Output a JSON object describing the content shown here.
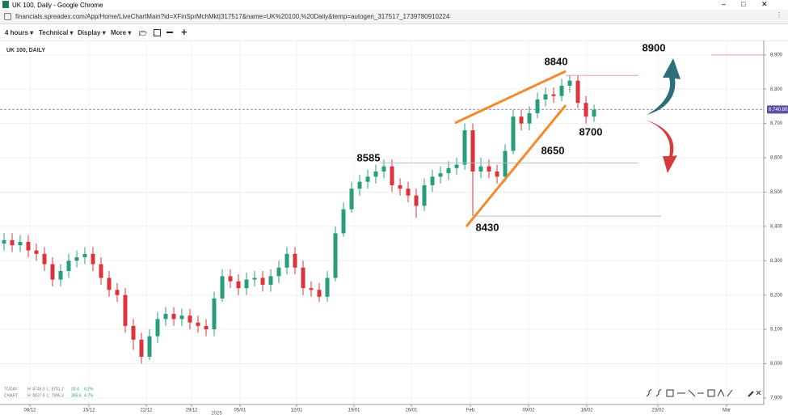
{
  "window_title": "UK 100, Daily - Google Chrome",
  "url": "financials.spreadex.com/App/Home/LiveChartMain?id=XFinSprMchMkt|317517&name=UK%20100,%20Daily&temp=autogen_317517_1739780910224",
  "toolbar": [
    "4 hours",
    "Technical",
    "Display",
    "More"
  ],
  "info": {
    "today": [
      "TODAY:",
      "H: 8746.0",
      "L: 8701.2",
      "20.4",
      "0.2%"
    ],
    "chart": [
      "CHART:",
      "H: 8837.6",
      "L: 7995.3",
      "395.6",
      "4.7%"
    ]
  },
  "chart_data": {
    "type": "candlestick",
    "title": "UK 100, DAILY",
    "x": [
      0,
      1,
      2,
      3,
      4,
      5,
      6,
      7,
      8,
      9,
      10,
      11,
      12,
      13,
      14,
      15,
      16,
      17,
      18,
      19,
      20,
      21,
      22,
      23,
      24,
      25,
      26,
      27,
      28,
      29,
      30,
      31,
      32,
      33,
      34,
      35,
      36,
      37,
      38,
      39,
      40,
      41,
      42,
      43,
      44,
      45,
      46,
      47,
      48,
      49,
      50,
      51,
      52,
      53,
      54,
      55,
      56,
      57,
      58,
      59,
      60,
      61,
      62,
      63,
      64,
      65,
      66,
      67,
      68,
      69,
      70,
      71,
      72,
      73
    ],
    "open": [
      8350,
      8360,
      8345,
      8355,
      8330,
      8320,
      8290,
      8245,
      8270,
      8300,
      8310,
      8320,
      8290,
      8250,
      8215,
      8200,
      8110,
      8070,
      8020,
      8080,
      8130,
      8145,
      8130,
      8140,
      8120,
      8110,
      8100,
      8190,
      8255,
      8240,
      8220,
      8245,
      8250,
      8230,
      8255,
      8280,
      8320,
      8280,
      8220,
      8215,
      8195,
      8250,
      8380,
      8450,
      8510,
      8530,
      8545,
      8560,
      8575,
      8520,
      8510,
      8490,
      8460,
      8520,
      8545,
      8555,
      8570,
      8580,
      8680,
      8560,
      8575,
      8560,
      8545,
      8620,
      8720,
      8700,
      8730,
      8770,
      8785,
      8780,
      8810,
      8825,
      8760,
      8720
    ],
    "high": [
      8380,
      8380,
      8375,
      8375,
      8350,
      8340,
      8310,
      8290,
      8320,
      8330,
      8340,
      8340,
      8310,
      8270,
      8235,
      8220,
      8130,
      8090,
      8100,
      8150,
      8165,
      8165,
      8160,
      8160,
      8140,
      8130,
      8210,
      8275,
      8275,
      8260,
      8265,
      8270,
      8270,
      8275,
      8300,
      8340,
      8340,
      8300,
      8240,
      8235,
      8270,
      8400,
      8470,
      8530,
      8550,
      8565,
      8580,
      8595,
      8595,
      8540,
      8530,
      8510,
      8540,
      8565,
      8575,
      8590,
      8600,
      8700,
      8700,
      8600,
      8595,
      8580,
      8640,
      8740,
      8740,
      8750,
      8790,
      8805,
      8805,
      8830,
      8840,
      8840,
      8780,
      8755
    ],
    "low": [
      8330,
      8325,
      8325,
      8310,
      8300,
      8270,
      8225,
      8225,
      8250,
      8280,
      8290,
      8270,
      8230,
      8195,
      8180,
      8090,
      8040,
      8000,
      8010,
      8060,
      8110,
      8110,
      8110,
      8100,
      8090,
      8080,
      8080,
      8180,
      8220,
      8200,
      8200,
      8225,
      8210,
      8210,
      8235,
      8260,
      8260,
      8200,
      8195,
      8180,
      8180,
      8240,
      8370,
      8440,
      8490,
      8510,
      8525,
      8540,
      8500,
      8490,
      8470,
      8425,
      8445,
      8500,
      8525,
      8535,
      8550,
      8565,
      8430,
      8540,
      8540,
      8525,
      8530,
      8610,
      8680,
      8680,
      8715,
      8750,
      8760,
      8765,
      8790,
      8745,
      8700,
      8705
    ],
    "close": [
      8360,
      8345,
      8355,
      8330,
      8320,
      8290,
      8245,
      8270,
      8300,
      8310,
      8320,
      8290,
      8250,
      8215,
      8200,
      8110,
      8070,
      8020,
      8080,
      8130,
      8145,
      8130,
      8140,
      8120,
      8110,
      8100,
      8190,
      8255,
      8240,
      8220,
      8245,
      8250,
      8230,
      8255,
      8280,
      8320,
      8280,
      8220,
      8215,
      8195,
      8250,
      8380,
      8450,
      8510,
      8530,
      8545,
      8560,
      8575,
      8520,
      8510,
      8490,
      8460,
      8520,
      8545,
      8555,
      8570,
      8580,
      8680,
      8560,
      8575,
      8560,
      8545,
      8620,
      8720,
      8700,
      8730,
      8770,
      8785,
      8780,
      8810,
      8825,
      8760,
      8720,
      8740
    ],
    "up_color": "#2a9d7a",
    "down_color": "#d9343c",
    "xlim": [
      -0.5,
      94
    ],
    "xticks": [
      {
        "value": 3.2,
        "label": "08/12"
      },
      {
        "value": 10.5,
        "label": "15/12"
      },
      {
        "value": 17.6,
        "label": "22/12"
      },
      {
        "value": 23.2,
        "label": "29/12"
      },
      {
        "value": 29.2,
        "label": "05/01"
      },
      {
        "value": 36.2,
        "label": "12/01"
      },
      {
        "value": 43.3,
        "label": "19/01"
      },
      {
        "value": 50.4,
        "label": "26/01"
      },
      {
        "value": 57.7,
        "label": "Feb"
      },
      {
        "value": 64.9,
        "label": "09/02"
      },
      {
        "value": 72.1,
        "label": "16/02"
      },
      {
        "value": 80.9,
        "label": "23/02"
      },
      {
        "value": 89.4,
        "label": "Mar"
      }
    ],
    "year_label": "2025",
    "ylim": [
      7881,
      8942
    ],
    "yticks": [
      {
        "value": 7900,
        "label": "7,900"
      },
      {
        "value": 8000,
        "label": "8,000"
      },
      {
        "value": 8100,
        "label": "8,100"
      },
      {
        "value": 8200,
        "label": "8,200"
      },
      {
        "value": 8300,
        "label": "8,300"
      },
      {
        "value": 8400,
        "label": "8,400"
      },
      {
        "value": 8500,
        "label": "8,500"
      },
      {
        "value": 8600,
        "label": "8,600"
      },
      {
        "value": 8700,
        "label": "8,700"
      },
      {
        "value": 8800,
        "label": "8,800"
      },
      {
        "value": 8900,
        "label": "8,900"
      }
    ],
    "current_price": {
      "value": 8740.8,
      "label": "8,740.80"
    },
    "grid": true,
    "levels": [
      8840,
      8900,
      8700,
      8650,
      8585,
      8430
    ]
  }
}
